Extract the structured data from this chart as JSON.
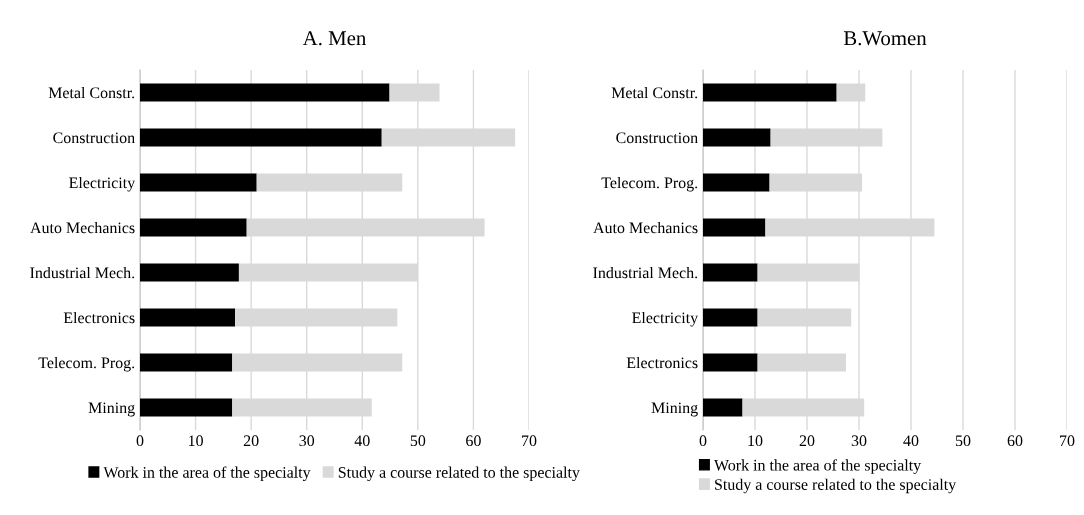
{
  "chart_data": [
    {
      "type": "bar",
      "orientation": "horizontal",
      "stacked": true,
      "title": "A. Men",
      "categories": [
        "Metal Constr.",
        "Construction",
        "Electricity",
        "Auto Mechanics",
        "Industrial Mech.",
        "Electronics",
        "Telecom. Prog.",
        "Mining"
      ],
      "series": [
        {
          "name": "Work in the area of the specialty",
          "color": "#000000",
          "values": [
            44.9,
            43.5,
            21.0,
            19.2,
            17.8,
            17.1,
            16.6,
            16.6
          ]
        },
        {
          "name": "Study a course related to the specialty",
          "color": "#d9d9d9",
          "values": [
            9.0,
            24.0,
            26.2,
            42.8,
            32.2,
            29.2,
            30.6,
            25.1
          ]
        }
      ],
      "xlim": [
        0,
        70
      ],
      "xticks": [
        0,
        10,
        20,
        30,
        40,
        50,
        60,
        70
      ],
      "grid": "x",
      "legend": "bottom"
    },
    {
      "type": "bar",
      "orientation": "horizontal",
      "stacked": true,
      "title": "B.Women",
      "categories": [
        "Metal Constr.",
        "Construction",
        "Telecom. Prog.",
        "Auto Mechanics",
        "Industrial Mech.",
        "Electricity",
        "Electronics",
        "Mining"
      ],
      "series": [
        {
          "name": "Work in the area of the specialty",
          "color": "#000000",
          "values": [
            25.7,
            13.0,
            12.8,
            12.0,
            10.5,
            10.5,
            10.5,
            7.6
          ]
        },
        {
          "name": "Study a course related to the specialty",
          "color": "#d9d9d9",
          "values": [
            5.5,
            21.5,
            17.8,
            32.5,
            19.6,
            18.0,
            17.0,
            23.4
          ]
        }
      ],
      "xlim": [
        0,
        70
      ],
      "xticks": [
        0,
        10,
        20,
        30,
        40,
        50,
        60,
        70
      ],
      "grid": "x",
      "legend": "bottom"
    }
  ]
}
